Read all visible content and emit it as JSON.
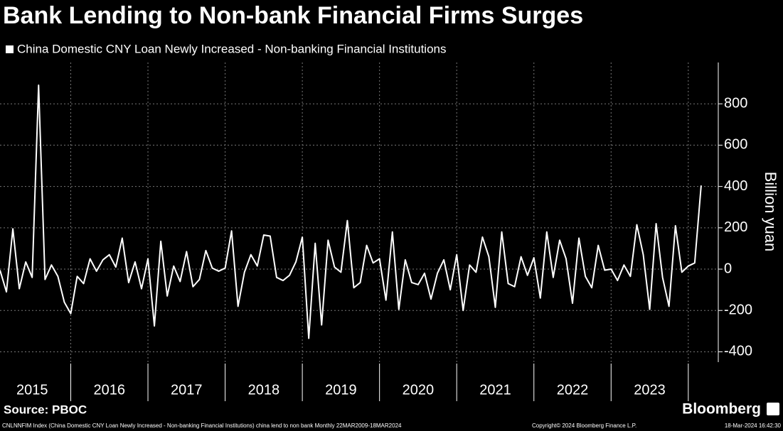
{
  "chart_data": {
    "type": "line",
    "title": "Bank Lending to Non-bank Financial Firms Surges",
    "y_label": "Billion yuan",
    "x": [
      "2015-01",
      "2015-02",
      "2015-03",
      "2015-04",
      "2015-05",
      "2015-06",
      "2015-07",
      "2015-08",
      "2015-09",
      "2015-10",
      "2015-11",
      "2015-12",
      "2016-01",
      "2016-02",
      "2016-03",
      "2016-04",
      "2016-05",
      "2016-06",
      "2016-07",
      "2016-08",
      "2016-09",
      "2016-10",
      "2016-11",
      "2016-12",
      "2017-01",
      "2017-02",
      "2017-03",
      "2017-04",
      "2017-05",
      "2017-06",
      "2017-07",
      "2017-08",
      "2017-09",
      "2017-10",
      "2017-11",
      "2017-12",
      "2018-01",
      "2018-02",
      "2018-03",
      "2018-04",
      "2018-05",
      "2018-06",
      "2018-07",
      "2018-08",
      "2018-09",
      "2018-10",
      "2018-11",
      "2018-12",
      "2019-01",
      "2019-02",
      "2019-03",
      "2019-04",
      "2019-05",
      "2019-06",
      "2019-07",
      "2019-08",
      "2019-09",
      "2019-10",
      "2019-11",
      "2019-12",
      "2020-01",
      "2020-02",
      "2020-03",
      "2020-04",
      "2020-05",
      "2020-06",
      "2020-07",
      "2020-08",
      "2020-09",
      "2020-10",
      "2020-11",
      "2020-12",
      "2021-01",
      "2021-02",
      "2021-03",
      "2021-04",
      "2021-05",
      "2021-06",
      "2021-07",
      "2021-08",
      "2021-09",
      "2021-10",
      "2021-11",
      "2021-12",
      "2022-01",
      "2022-02",
      "2022-03",
      "2022-04",
      "2022-05",
      "2022-06",
      "2022-07",
      "2022-08",
      "2022-09",
      "2022-10",
      "2022-11",
      "2022-12",
      "2023-01",
      "2023-02",
      "2023-03",
      "2023-04",
      "2023-05",
      "2023-06",
      "2023-07",
      "2023-08",
      "2023-09",
      "2023-10",
      "2023-11",
      "2023-12",
      "2024-01",
      "2024-02"
    ],
    "series": [
      {
        "name": "China Domestic CNY Loan Newly Increased - Non-banking Financial Institutions",
        "color": "#ffffff",
        "values": [
          -5,
          -110,
          195,
          -95,
          35,
          -40,
          890,
          -50,
          20,
          -35,
          -160,
          -215,
          -35,
          -70,
          50,
          -10,
          45,
          70,
          10,
          150,
          -65,
          35,
          -95,
          50,
          -275,
          135,
          -130,
          15,
          -60,
          85,
          -85,
          -50,
          90,
          5,
          -10,
          5,
          185,
          -180,
          -15,
          70,
          15,
          165,
          160,
          -40,
          -55,
          -30,
          35,
          155,
          -335,
          125,
          -270,
          140,
          10,
          -15,
          235,
          -90,
          -65,
          115,
          30,
          50,
          -150,
          180,
          -195,
          45,
          -65,
          -75,
          -20,
          -145,
          -20,
          45,
          -100,
          70,
          -200,
          20,
          -15,
          155,
          60,
          -185,
          180,
          -70,
          -85,
          60,
          -30,
          55,
          -140,
          180,
          -40,
          140,
          50,
          -165,
          150,
          -35,
          -90,
          115,
          -5,
          0,
          -55,
          20,
          -35,
          215,
          70,
          -195,
          220,
          -40,
          -180,
          210,
          -15,
          15,
          30,
          405
        ]
      }
    ],
    "xlim": [
      "2015-01",
      "2024-04"
    ],
    "xticks": [
      {
        "value": "2015-06",
        "label": "2015"
      },
      {
        "value": "2016-06",
        "label": "2016"
      },
      {
        "value": "2017-06",
        "label": "2017"
      },
      {
        "value": "2018-06",
        "label": "2018"
      },
      {
        "value": "2019-06",
        "label": "2019"
      },
      {
        "value": "2020-06",
        "label": "2020"
      },
      {
        "value": "2021-06",
        "label": "2021"
      },
      {
        "value": "2022-06",
        "label": "2022"
      },
      {
        "value": "2023-06",
        "label": "2023"
      }
    ],
    "ylim": [
      -450,
      1000
    ],
    "yticks": [
      -400,
      -200,
      0,
      200,
      400,
      600,
      800
    ],
    "grid": true
  },
  "footer": {
    "source": "Source: PBOC",
    "note": "CNLNNFIM Index (China Domestic CNY Loan Newly Increased - Non-banking Financial Institutions) china lend to non bank  Monthly 22MAR2009-18MAR2024",
    "copyright": "Copyright© 2024 Bloomberg Finance L.P.",
    "timestamp": "18-Mar-2024 16:42:30",
    "brand": "Bloomberg"
  }
}
